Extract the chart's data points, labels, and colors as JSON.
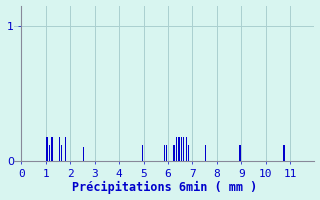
{
  "xlabel": "Précipitations 6min ( mm )",
  "xlim": [
    -0.3,
    12
  ],
  "ylim": [
    0,
    1.15
  ],
  "yticks": [
    0,
    1
  ],
  "xticks": [
    0,
    1,
    2,
    3,
    4,
    5,
    6,
    7,
    8,
    9,
    10,
    11
  ],
  "bar_positions": [
    1.05,
    1.15,
    1.25,
    1.55,
    1.65,
    1.8,
    2.55,
    4.95,
    5.85,
    5.95,
    6.25,
    6.35,
    6.45,
    6.55,
    6.65,
    6.75,
    6.85,
    7.55,
    8.95,
    10.75
  ],
  "bar_heights": [
    0.18,
    0.12,
    0.18,
    0.18,
    0.12,
    0.18,
    0.1,
    0.12,
    0.12,
    0.12,
    0.12,
    0.18,
    0.18,
    0.18,
    0.18,
    0.18,
    0.12,
    0.12,
    0.12,
    0.12
  ],
  "bar_width": 0.055,
  "bar_color": "#0000cc",
  "background_color": "#d8f5f0",
  "grid_color": "#aacfcf",
  "axis_color": "#888899",
  "text_color": "#0000cc",
  "xlabel_fontsize": 8.5,
  "tick_fontsize": 8
}
